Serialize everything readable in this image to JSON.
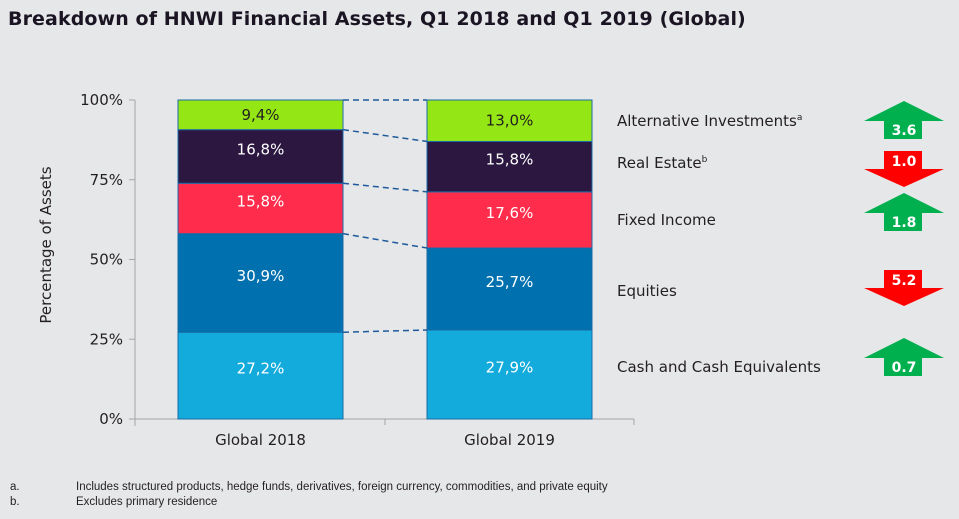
{
  "title": "Breakdown of HNWI Financial Assets, Q1 2018 and Q1 2019 (Global)",
  "chart_data": {
    "type": "bar",
    "stacked": true,
    "title": "Breakdown of HNWI Financial Assets, Q1 2018 and Q1 2019 (Global)",
    "xlabel": "",
    "ylabel": "Percentage of Assets",
    "ylim": [
      0,
      100
    ],
    "yticks": [
      "0%",
      "25%",
      "50%",
      "75%",
      "100%"
    ],
    "ytick_values": [
      0,
      25,
      50,
      75,
      100
    ],
    "categories": [
      "Global 2018",
      "Global 2019"
    ],
    "series": [
      {
        "name": "Cash and Cash Equivalents",
        "sup": "",
        "values": [
          27.2,
          27.9
        ],
        "labels": [
          "27,2%",
          "27,9%"
        ],
        "color": "#13aadc",
        "label_color": "#ffffff",
        "change": "0.7",
        "direction": "up"
      },
      {
        "name": "Equities",
        "sup": "",
        "values": [
          30.9,
          25.7
        ],
        "labels": [
          "30,9%",
          "25,7%"
        ],
        "color": "#0070ae",
        "label_color": "#ffffff",
        "change": "5.2",
        "direction": "down"
      },
      {
        "name": "Fixed Income",
        "sup": "",
        "values": [
          15.8,
          17.6
        ],
        "labels": [
          "15,8%",
          "17,6%"
        ],
        "color": "#ff2d4b",
        "label_color": "#ffffff",
        "change": "1.8",
        "direction": "up"
      },
      {
        "name": "Real Estate",
        "sup": "b",
        "values": [
          16.8,
          15.8
        ],
        "labels": [
          "16,8%",
          "15,8%"
        ],
        "color": "#2b1740",
        "label_color": "#ffffff",
        "change": "1.0",
        "direction": "down"
      },
      {
        "name": "Alternative Investments",
        "sup": "a",
        "values": [
          9.4,
          13.0
        ],
        "labels": [
          "9,4%",
          "13,0%"
        ],
        "color": "#95e615",
        "label_color": "#231f20",
        "change": "3.6",
        "direction": "up"
      }
    ],
    "grid": false,
    "legend": "right",
    "up_color": "#00b04f",
    "down_color": "#ff0000",
    "connector_color": "#1f5a9a"
  },
  "footnotes": [
    {
      "mark": "a.",
      "text": "Includes structured products, hedge funds, derivatives, foreign currency, commodities, and private equity"
    },
    {
      "mark": "b.",
      "text": "Excludes primary residence"
    }
  ]
}
